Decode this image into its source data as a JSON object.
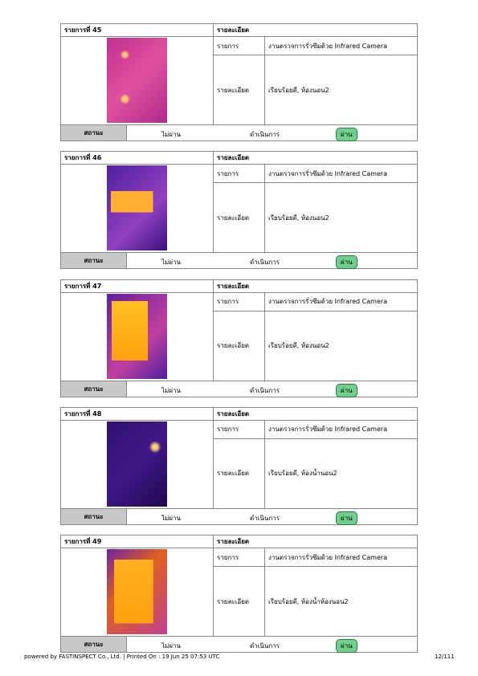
{
  "items": [
    {
      "title": "รายการที่ 45",
      "header": "รายละเอียด",
      "rows": [
        [
          "รายการ",
          "งานตรวจการรั่วซึมด้วย Infrared Camera"
        ],
        [
          "รายละเอียด",
          "เรียบร้อยดี, ห้องนอน2"
        ]
      ],
      "status_label": "สถานะ",
      "options": [
        "ไม่ผ่าน",
        "ดำเนินการ",
        "ผ่าน"
      ]
    },
    {
      "title": "รายการที่ 46",
      "header": "รายละเอียด",
      "rows": [
        [
          "รายการ",
          "งานตรวจการรั่วซึมด้วย Infrared Camera"
        ],
        [
          "รายละเอียด",
          "เรียบร้อยดี, ห้องนอน2"
        ]
      ],
      "status_label": "สถานะ",
      "options": [
        "ไม่ผ่าน",
        "ดำเนินการ",
        "ผ่าน"
      ]
    },
    {
      "title": "รายการที่ 47",
      "header": "รายละเอียด",
      "rows": [
        [
          "รายการ",
          "งานตรวจการรั่วซึมด้วย Infrared Camera"
        ],
        [
          "รายละเอียด",
          "เรียบร้อยดี, ห้องนอน2"
        ]
      ],
      "status_label": "สถานะ",
      "options": [
        "ไม่ผ่าน",
        "ดำเนินการ",
        "ผ่าน"
      ]
    },
    {
      "title": "รายการที่ 48",
      "header": "รายละเอียด",
      "rows": [
        [
          "รายการ",
          "งานตรวจการรั่วซึมด้วย Infrared Camera"
        ],
        [
          "รายละเอียด",
          "เรียบร้อยดี, ห้องน้ำนอน2"
        ]
      ],
      "status_label": "สถานะ",
      "options": [
        "ไม่ผ่าน",
        "ดำเนินการ",
        "ผ่าน"
      ]
    },
    {
      "title": "รายการที่ 49",
      "header": "รายละเอียด",
      "rows": [
        [
          "รายการ",
          "งานตรวจการรั่วซึมด้วย Infrared Camera"
        ],
        [
          "รายละเอียด",
          "เรียบร้อยดี, ห้องน้ำห้องนอน2"
        ]
      ],
      "status_label": "สถานะ",
      "options": [
        "ไม่ผ่าน",
        "ดำเนินการ",
        "ผ่าน"
      ]
    }
  ],
  "footer": {
    "left": "powered by FASTINSPECT Co., Ltd. | Printed On : 19 Jun 25 07:53 UTC",
    "right": "12/111"
  }
}
